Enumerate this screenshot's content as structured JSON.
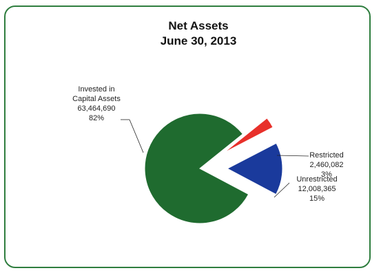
{
  "chart_data": {
    "type": "pie",
    "title": "Net Assets",
    "subtitle": "June 30, 2013",
    "slices": [
      {
        "label_lines": [
          "Invested in",
          "Capital Assets"
        ],
        "value": 63464690,
        "value_label": "63,464,690",
        "percent_label": "82%",
        "color": "#1f6b2f"
      },
      {
        "label_lines": [
          "Restricted"
        ],
        "value": 2460082,
        "value_label": "2,460,082",
        "percent_label": "3%",
        "color": "#e8302a"
      },
      {
        "label_lines": [
          "Unrestricted"
        ],
        "value": 12008365,
        "value_label": "12,008,365",
        "percent_label": "15%",
        "color": "#1a3a9c"
      }
    ]
  }
}
